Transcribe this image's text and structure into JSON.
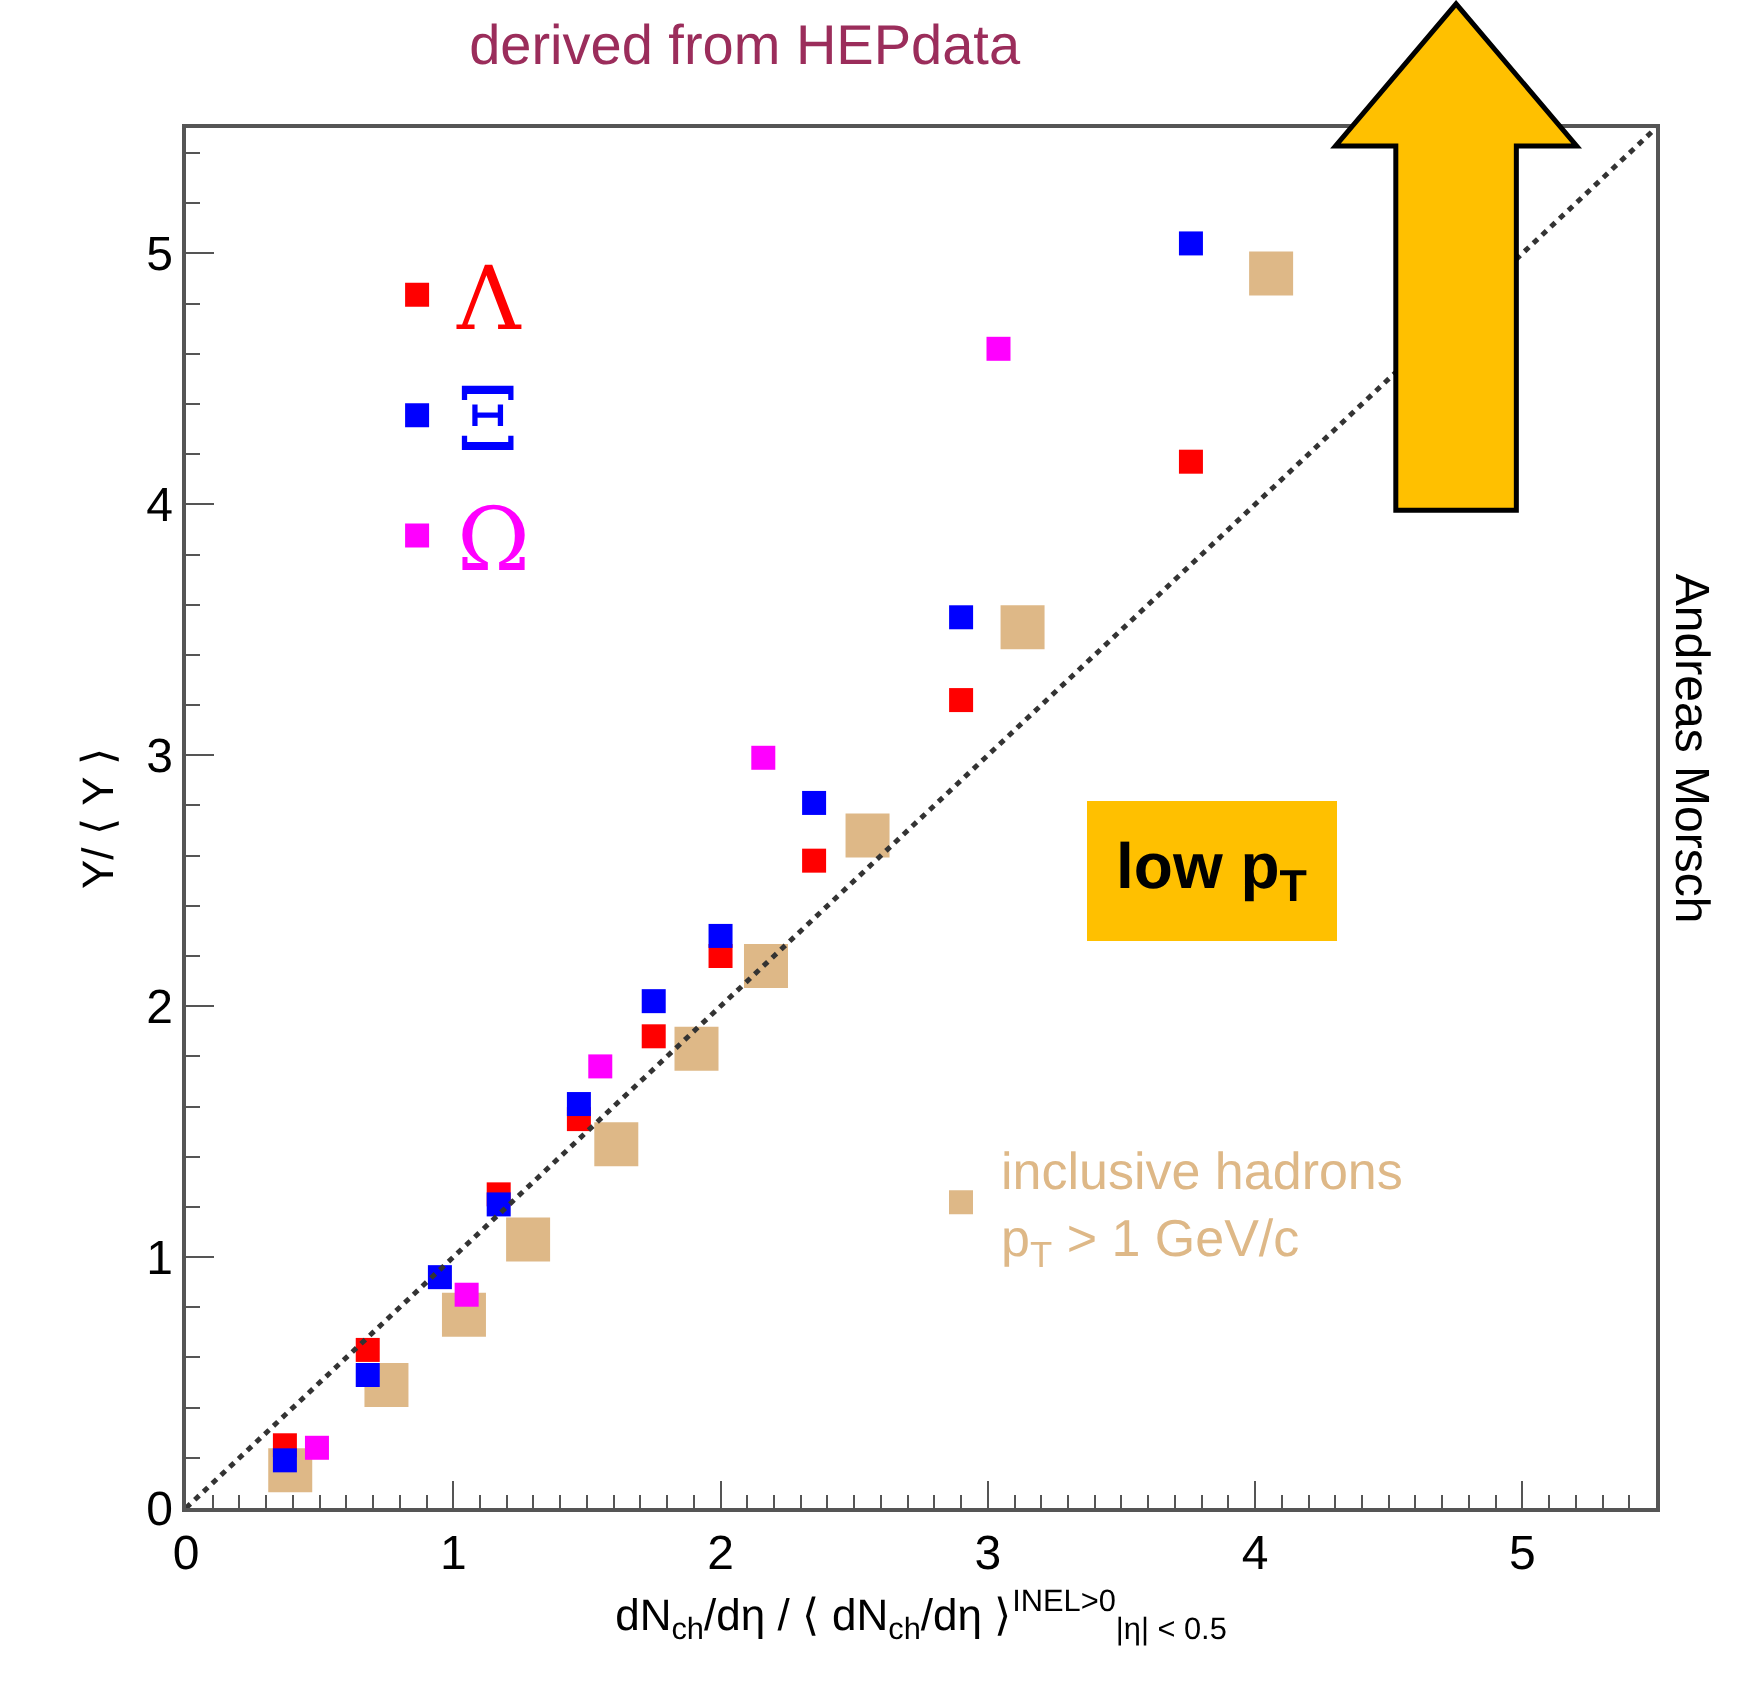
{
  "chart_data": {
    "type": "scatter",
    "title": "derived from HEPdata",
    "xlabel": "dN$_{ch}$/dη / ⟨ dN$_{ch}$/dη ⟩$^{INEL>0}$$_{|η| < 0.5}$",
    "ylabel": "Y/ ⟨ Y ⟩",
    "xlim": [
      0,
      5.5
    ],
    "ylim": [
      0,
      5.5
    ],
    "xticks": [
      0,
      1,
      2,
      3,
      4,
      5
    ],
    "yticks": [
      0,
      1,
      2,
      3,
      4,
      5
    ],
    "legend": "top left",
    "marker": "square",
    "series": [
      {
        "name": "Λ",
        "color": "#ff0000",
        "x": [
          0.37,
          0.68,
          1.17,
          1.47,
          1.75,
          2.0,
          2.35,
          2.9,
          3.76
        ],
        "values": [
          0.25,
          0.63,
          1.25,
          1.55,
          1.88,
          2.2,
          2.58,
          3.22,
          4.17
        ]
      },
      {
        "name": "Ξ",
        "color": "#0000ff",
        "x": [
          0.37,
          0.68,
          0.95,
          1.17,
          1.47,
          1.75,
          2.0,
          2.35,
          2.9,
          3.76
        ],
        "values": [
          0.19,
          0.53,
          0.92,
          1.21,
          1.61,
          2.02,
          2.28,
          2.81,
          3.55,
          5.04
        ]
      },
      {
        "name": "Ω",
        "color": "#ff00ff",
        "x": [
          0.49,
          1.05,
          1.55,
          2.16,
          3.04
        ],
        "values": [
          0.24,
          0.85,
          1.76,
          2.99,
          4.62
        ]
      },
      {
        "name": "inclusive hadrons\np$_{T}$ > 1 GeV/c",
        "color": "#deb887",
        "x": [
          0.39,
          0.75,
          1.04,
          1.28,
          1.61,
          1.91,
          2.17,
          2.55,
          3.13,
          4.06
        ],
        "values": [
          0.15,
          0.49,
          0.77,
          1.07,
          1.45,
          1.83,
          2.16,
          2.68,
          3.51,
          4.92
        ]
      },
      {
        "type": "line",
        "color": "#333333",
        "line_style": "dotted",
        "marker": "none",
        "x": [
          0,
          5.5
        ],
        "values": [
          0,
          5.5
        ]
      }
    ],
    "annotations": [
      "low p$_{T}$",
      "Andreas Morsch"
    ]
  }
}
